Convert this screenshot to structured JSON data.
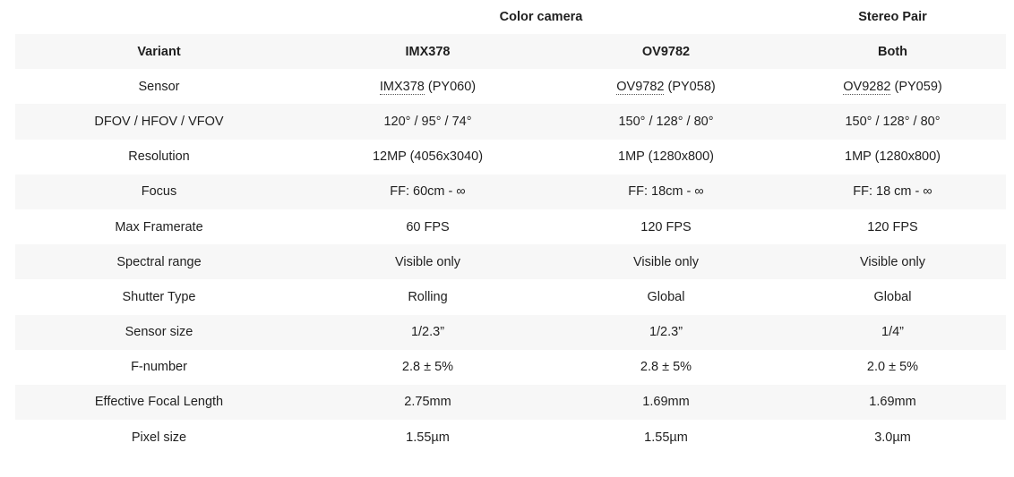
{
  "groups": {
    "color": "Color camera",
    "stereo": "Stereo Pair"
  },
  "header": [
    "Variant",
    "IMX378",
    "OV9782",
    "Both"
  ],
  "sensor_row": {
    "label": "Sensor",
    "cells": [
      {
        "link": "IMX378",
        "suffix": " (PY060)"
      },
      {
        "link": "OV9782",
        "suffix": " (PY058)"
      },
      {
        "link": "OV9282",
        "suffix": " (PY059)"
      }
    ]
  },
  "rows": [
    {
      "label": "DFOV / HFOV / VFOV",
      "values": [
        "120° / 95° / 74°",
        "150° / 128° / 80°",
        "150° / 128° / 80°"
      ]
    },
    {
      "label": "Resolution",
      "values": [
        "12MP (4056x3040)",
        "1MP (1280x800)",
        "1MP (1280x800)"
      ]
    },
    {
      "label": "Focus",
      "values": [
        "FF: 60cm - ∞",
        "FF: 18cm - ∞",
        "FF: 18 cm - ∞"
      ]
    },
    {
      "label": "Max Framerate",
      "values": [
        "60 FPS",
        "120 FPS",
        "120 FPS"
      ]
    },
    {
      "label": "Spectral range",
      "values": [
        "Visible only",
        "Visible only",
        "Visible only"
      ]
    },
    {
      "label": "Shutter Type",
      "values": [
        "Rolling",
        "Global",
        "Global"
      ]
    },
    {
      "label": "Sensor size",
      "values": [
        "1/2.3”",
        "1/2.3”",
        "1/4”"
      ]
    },
    {
      "label": "F-number",
      "values": [
        "2.8 ± 5%",
        "2.8 ± 5%",
        "2.0 ± 5%"
      ]
    },
    {
      "label": "Effective Focal Length",
      "values": [
        "2.75mm",
        "1.69mm",
        "1.69mm"
      ]
    },
    {
      "label": "Pixel size",
      "values": [
        "1.55µm",
        "1.55µm",
        "3.0µm"
      ]
    }
  ]
}
